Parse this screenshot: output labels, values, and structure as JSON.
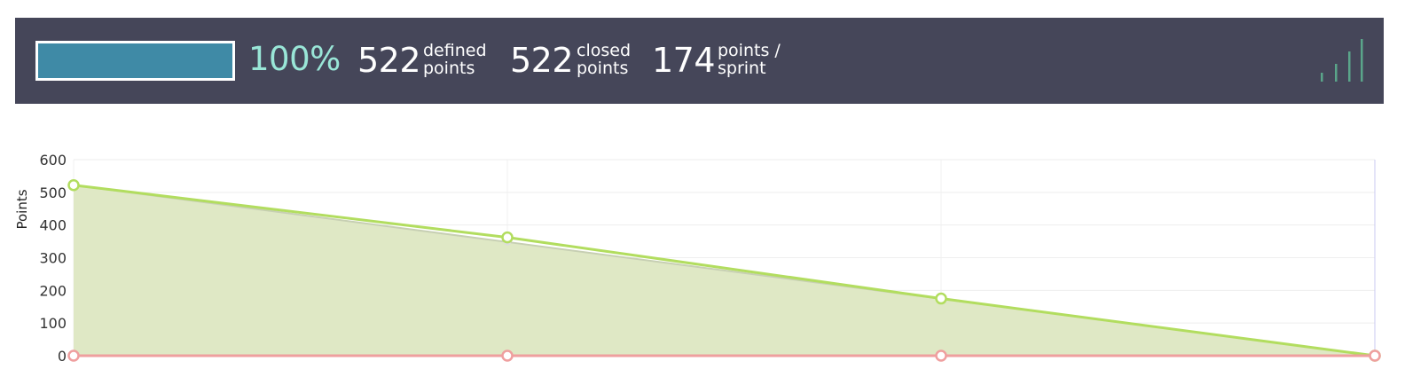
{
  "summary": {
    "progress_percent": 100,
    "progress_label": "100%",
    "defined": {
      "value": "522",
      "label_line1": "defined",
      "label_line2": "points"
    },
    "closed": {
      "value": "522",
      "label_line1": "closed",
      "label_line2": "points"
    },
    "velocity": {
      "value": "174",
      "label_line1": "points /",
      "label_line2": "sprint"
    },
    "icon": "signal-bars-icon"
  },
  "colors": {
    "header_bg": "#454659",
    "progress_fill": "#3f8aa6",
    "percent_text": "#99e6d7",
    "ideal_line": "#b2dd5f",
    "area_fill": "#dfe8c5",
    "zero_line": "#ef9f9f",
    "signal_icon": "#5aa58a"
  },
  "chart_data": {
    "type": "area",
    "ylabel": "Points",
    "xlabel": "",
    "ylim": [
      0,
      600
    ],
    "yticks": [
      "600",
      "500",
      "400",
      "300",
      "200",
      "100",
      "0"
    ],
    "x": [
      0,
      1,
      2,
      3
    ],
    "grid": true,
    "series": [
      {
        "values": [
          522,
          348,
          174,
          0
        ],
        "style": "area"
      },
      {
        "values": [
          522,
          362,
          175,
          0
        ],
        "style": "line-with-markers"
      },
      {
        "values": [
          0,
          0,
          0,
          0
        ],
        "style": "line-with-markers"
      }
    ]
  }
}
